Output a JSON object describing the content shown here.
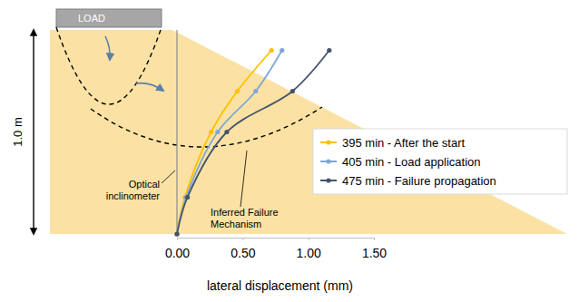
{
  "chart_data": {
    "type": "line",
    "x_label": "lateral displacement (mm)",
    "annotations": {
      "load": "LOAD",
      "height": "1.0 m",
      "inclinometer": "Optical inclinometer",
      "failure": "Inferred Failure Mechanism"
    },
    "xlim": [
      0,
      1.5
    ],
    "xticks": [
      {
        "value": 0,
        "label": "0.00"
      },
      {
        "value": 0.5,
        "label": "0.50"
      },
      {
        "value": 1.0,
        "label": "1.00"
      },
      {
        "value": 1.5,
        "label": "1.50"
      }
    ],
    "ylim": [
      0,
      1.0
    ],
    "tick_labels": "x",
    "grid": false,
    "legend": "right",
    "marker": "circle",
    "series": [
      {
        "name": "395 min - After the start",
        "color": "#ffc000",
        "x": [
          0.0,
          0.06,
          0.26,
          0.46,
          0.72
        ],
        "y": [
          0,
          0.18,
          0.5,
          0.7,
          0.9
        ]
      },
      {
        "name": "405 min - Load application",
        "color": "#7fa7d6",
        "x": [
          0.0,
          0.07,
          0.31,
          0.6,
          0.8
        ],
        "y": [
          0,
          0.18,
          0.5,
          0.7,
          0.9
        ]
      },
      {
        "name": "475 min - Failure propagation",
        "color": "#44546a",
        "x": [
          0.0,
          0.08,
          0.38,
          0.88,
          1.16
        ],
        "y": [
          0,
          0.18,
          0.5,
          0.7,
          0.9
        ]
      }
    ]
  }
}
